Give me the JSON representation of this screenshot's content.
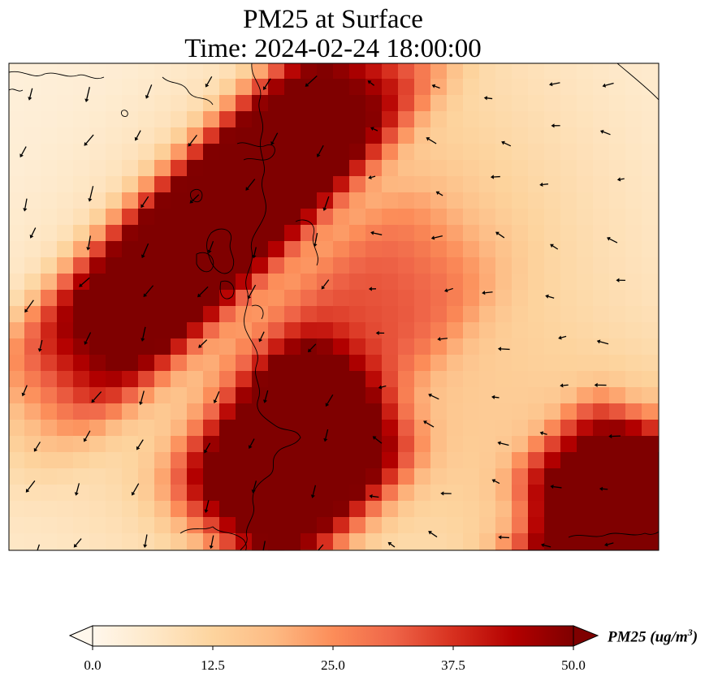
{
  "title": {
    "line1": "PM25 at Surface",
    "line2": "Time: 2024-02-24 18:00:00"
  },
  "colorbar": {
    "label_main": "PM25 (ug/m",
    "label_exp": "3",
    "label_close": ")",
    "ticks": [
      "0.0",
      "12.5",
      "25.0",
      "37.5",
      "50.0"
    ],
    "tick_values": [
      0,
      12.5,
      25,
      37.5,
      50
    ],
    "min": 0,
    "max": 50,
    "extend": "both",
    "colormap": "OrRd",
    "stops": [
      "#fff7ec",
      "#fee8c8",
      "#fdd49e",
      "#fdbb84",
      "#fc8d59",
      "#ef6548",
      "#d7301f",
      "#b30000",
      "#7f0000"
    ]
  },
  "map": {
    "variable": "PM25",
    "level": "Surface",
    "units": "ug/m3",
    "has_coastlines": true,
    "has_wind_vectors": true,
    "plumes": [
      {
        "name": "northwest-core",
        "peak": 52
      },
      {
        "name": "central-south",
        "peak": 50
      },
      {
        "name": "southeast",
        "peak": 46
      }
    ]
  }
}
